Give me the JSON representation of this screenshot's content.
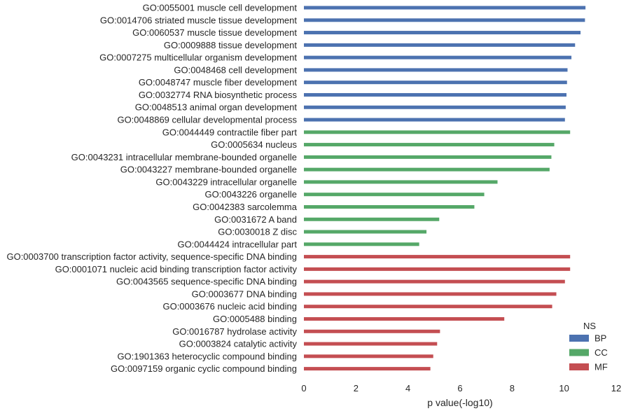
{
  "chart_data": {
    "type": "bar",
    "orientation": "horizontal",
    "xlabel": "p value(-log10)",
    "ylabel": "",
    "xlim": [
      0,
      12
    ],
    "xticks": [
      "0",
      "2",
      "4",
      "6",
      "8",
      "10",
      "12"
    ],
    "grid": false,
    "legend": {
      "title": "NS",
      "position": "bottom-right",
      "entries": [
        {
          "name": "BP",
          "color": "#4c72b0"
        },
        {
          "name": "CC",
          "color": "#55a868"
        },
        {
          "name": "MF",
          "color": "#c44e52"
        }
      ]
    },
    "bars": [
      {
        "label": "GO:0055001 muscle cell development",
        "value": 10.82,
        "group": "BP"
      },
      {
        "label": "GO:0014706 striated muscle tissue development",
        "value": 10.8,
        "group": "BP"
      },
      {
        "label": "GO:0060537 muscle tissue development",
        "value": 10.63,
        "group": "BP"
      },
      {
        "label": "GO:0009888 tissue development",
        "value": 10.42,
        "group": "BP"
      },
      {
        "label": "GO:0007275 multicellular organism development",
        "value": 10.28,
        "group": "BP"
      },
      {
        "label": "GO:0048468 cell development",
        "value": 10.13,
        "group": "BP"
      },
      {
        "label": "GO:0048747 muscle fiber development",
        "value": 10.11,
        "group": "BP"
      },
      {
        "label": "GO:0032774 RNA biosynthetic process",
        "value": 10.09,
        "group": "BP"
      },
      {
        "label": "GO:0048513 animal organ development",
        "value": 10.06,
        "group": "BP"
      },
      {
        "label": "GO:0048869 cellular developmental process",
        "value": 10.03,
        "group": "BP"
      },
      {
        "label": "GO:0044449 contractile fiber part",
        "value": 10.23,
        "group": "CC"
      },
      {
        "label": "GO:0005634 nucleus",
        "value": 9.62,
        "group": "CC"
      },
      {
        "label": "GO:0043231 intracellular membrane-bounded organelle",
        "value": 9.51,
        "group": "CC"
      },
      {
        "label": "GO:0043227 membrane-bounded organelle",
        "value": 9.44,
        "group": "CC"
      },
      {
        "label": "GO:0043229 intracellular organelle",
        "value": 7.44,
        "group": "CC"
      },
      {
        "label": "GO:0043226 organelle",
        "value": 6.93,
        "group": "CC"
      },
      {
        "label": "GO:0042383 sarcolemma",
        "value": 6.55,
        "group": "CC"
      },
      {
        "label": "GO:0031672 A band",
        "value": 5.2,
        "group": "CC"
      },
      {
        "label": "GO:0030018 Z disc",
        "value": 4.71,
        "group": "CC"
      },
      {
        "label": "GO:0044424 intracellular part",
        "value": 4.43,
        "group": "CC"
      },
      {
        "label": "GO:0003700 transcription factor activity, sequence-specific DNA binding",
        "value": 10.23,
        "group": "MF"
      },
      {
        "label": "GO:0001071 nucleic acid binding transcription factor activity",
        "value": 10.23,
        "group": "MF"
      },
      {
        "label": "GO:0043565 sequence-specific DNA binding",
        "value": 10.03,
        "group": "MF"
      },
      {
        "label": "GO:0003677 DNA binding",
        "value": 9.7,
        "group": "MF"
      },
      {
        "label": "GO:0003676 nucleic acid binding",
        "value": 9.54,
        "group": "MF"
      },
      {
        "label": "GO:0005488 binding",
        "value": 7.7,
        "group": "MF"
      },
      {
        "label": "GO:0016787 hydrolase activity",
        "value": 5.23,
        "group": "MF"
      },
      {
        "label": "GO:0003824 catalytic activity",
        "value": 5.12,
        "group": "MF"
      },
      {
        "label": "GO:1901363 heterocyclic compound binding",
        "value": 4.97,
        "group": "MF"
      },
      {
        "label": "GO:0097159 organic cyclic compound binding",
        "value": 4.86,
        "group": "MF"
      }
    ]
  }
}
